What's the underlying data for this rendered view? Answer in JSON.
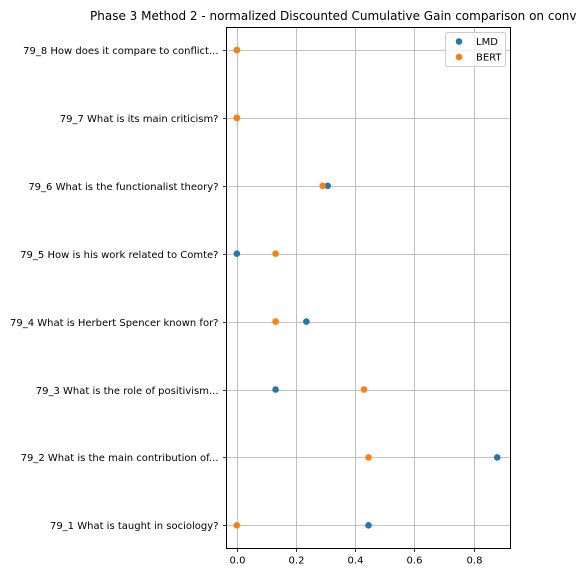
{
  "chart_data": {
    "type": "scatter",
    "title": "Phase 3 Method 2 - normalized Discounted Cumulative Gain comparison on conv",
    "xlabel": "",
    "ylabel": "",
    "xlim": [
      -0.035,
      0.925
    ],
    "xticks": [
      0.0,
      0.2,
      0.4,
      0.6,
      0.8
    ],
    "xtick_labels": [
      "0.0",
      "0.2",
      "0.4",
      "0.6",
      "0.8"
    ],
    "grid": true,
    "legend_position": "top-right",
    "categories": [
      "79_8 How does it compare to conflict...",
      "79_7 What is its main criticism?",
      "79_6 What is the functionalist theory?",
      "79_5 How is his work related to Comte?",
      "79_4 What is Herbert Spencer known for?",
      "79_3 What is the role of positivism...",
      "79_2 What is the main contribution of...",
      "79_1 What is taught in sociology?"
    ],
    "series": [
      {
        "name": "LMD",
        "color": "#1f77b4",
        "values": [
          0.0,
          0.0,
          0.307,
          0.0,
          0.235,
          0.131,
          0.88,
          0.445
        ]
      },
      {
        "name": "BERT",
        "color": "#ff7f0e",
        "values": [
          0.0,
          0.0,
          0.29,
          0.131,
          0.131,
          0.43,
          0.445,
          0.0
        ]
      }
    ]
  }
}
